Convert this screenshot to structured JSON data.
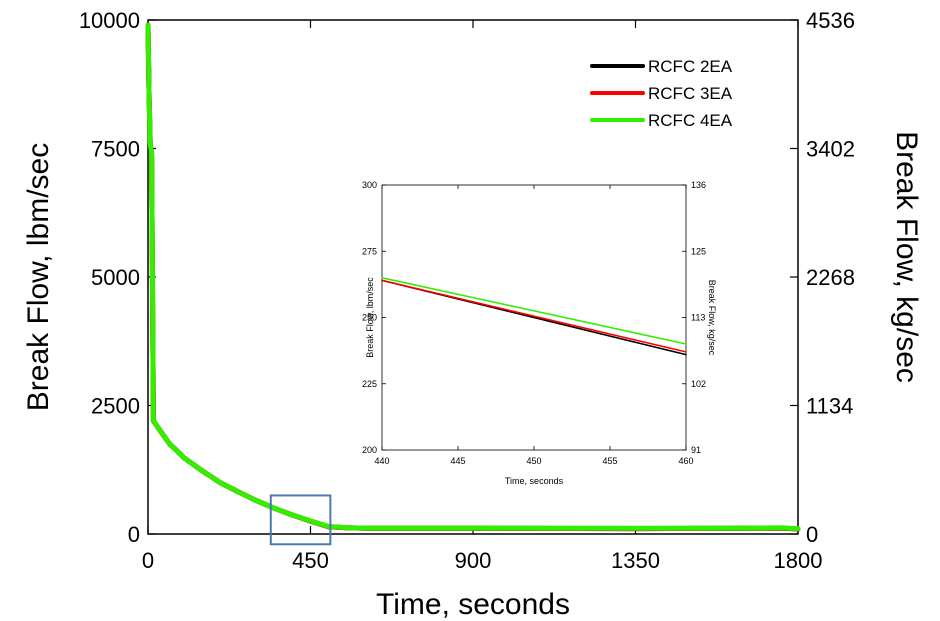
{
  "chart_data": [
    {
      "type": "line",
      "xlabel": "Time, seconds",
      "ylabel": "Break Flow, lbm/sec",
      "y2label": "Break Flow, kg/sec",
      "xlim": [
        0,
        1800
      ],
      "ylim": [
        0,
        10000
      ],
      "y2lim": [
        0,
        4536
      ],
      "x_ticks": [
        "0",
        "450",
        "900",
        "1350",
        "1800"
      ],
      "y_ticks": [
        "0",
        "2500",
        "5000",
        "7500",
        "10000"
      ],
      "y2_ticks": [
        "0",
        "1134",
        "2268",
        "3402",
        "4536"
      ],
      "legend_position": "top-right",
      "grid": false,
      "series": [
        {
          "name": "RCFC 2EA",
          "color": "#000000",
          "x": [
            0,
            3,
            6,
            10,
            15,
            20,
            40,
            60,
            80,
            100,
            150,
            200,
            250,
            300,
            350,
            400,
            450,
            500,
            550,
            600,
            900,
            1350,
            1650,
            1750,
            1800
          ],
          "y": [
            9900,
            8500,
            7600,
            7400,
            2200,
            2150,
            1950,
            1750,
            1620,
            1480,
            1230,
            1000,
            820,
            650,
            500,
            370,
            250,
            140,
            120,
            110,
            110,
            105,
            110,
            115,
            100
          ]
        },
        {
          "name": "RCFC 3EA",
          "color": "#ff0000",
          "x": [
            0,
            3,
            6,
            10,
            15,
            20,
            40,
            60,
            80,
            100,
            150,
            200,
            250,
            300,
            350,
            400,
            450,
            500,
            550,
            600,
            900,
            1350,
            1650,
            1750,
            1800
          ],
          "y": [
            9900,
            8500,
            7600,
            7400,
            2200,
            2150,
            1950,
            1750,
            1620,
            1480,
            1230,
            1000,
            820,
            650,
            500,
            370,
            250,
            140,
            120,
            110,
            110,
            105,
            110,
            115,
            100
          ]
        },
        {
          "name": "RCFC 4EA",
          "color": "#33ee00",
          "x": [
            0,
            3,
            6,
            10,
            15,
            20,
            40,
            60,
            80,
            100,
            150,
            200,
            250,
            300,
            350,
            400,
            450,
            500,
            550,
            600,
            900,
            1350,
            1650,
            1750,
            1800
          ],
          "y": [
            9900,
            8500,
            7600,
            7400,
            2200,
            2150,
            1950,
            1750,
            1620,
            1480,
            1230,
            1000,
            820,
            650,
            500,
            370,
            255,
            145,
            125,
            115,
            115,
            110,
            115,
            120,
            105
          ]
        }
      ],
      "annotation": {
        "type": "zoom-box",
        "x": [
          340,
          505
        ],
        "y": [
          -200,
          750
        ],
        "color": "#4a7ab0"
      }
    },
    {
      "type": "line",
      "xlabel": "Time, seconds",
      "ylabel": "Break Flow, lbm/sec",
      "y2label": "Break Flow, kg/sec",
      "xlim": [
        440,
        460
      ],
      "ylim": [
        200,
        300
      ],
      "y2lim": [
        91,
        136
      ],
      "x_ticks": [
        "440",
        "445",
        "450",
        "455",
        "460"
      ],
      "y_ticks": [
        "200",
        "225",
        "250",
        "275",
        "300"
      ],
      "y2_ticks": [
        "91",
        "102",
        "113",
        "125",
        "136"
      ],
      "grid": false,
      "series": [
        {
          "name": "RCFC 2EA",
          "color": "#000000",
          "x": [
            440,
            460
          ],
          "y": [
            264,
            236
          ]
        },
        {
          "name": "RCFC 3EA",
          "color": "#ff0000",
          "x": [
            440,
            460
          ],
          "y": [
            264,
            237
          ]
        },
        {
          "name": "RCFC 4EA",
          "color": "#33ee00",
          "x": [
            440,
            460
          ],
          "y": [
            265,
            240
          ]
        }
      ]
    }
  ]
}
